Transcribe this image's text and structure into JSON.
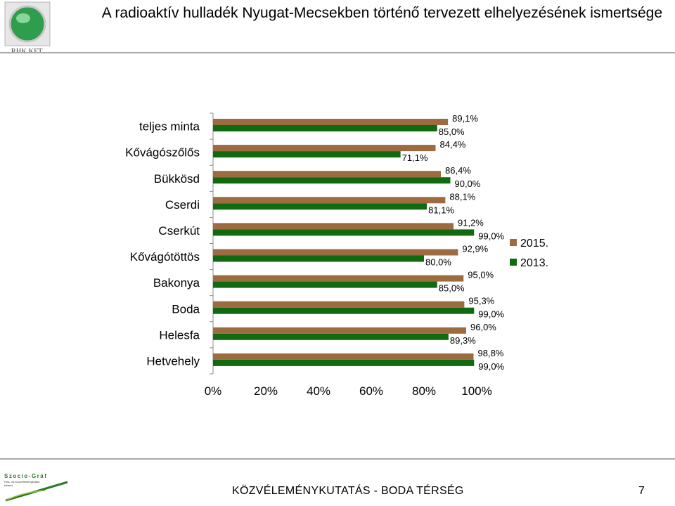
{
  "header": {
    "title": "A radioaktív hulladék Nyugat-Mecsekben történő tervezett elhelyezésének ismertsége",
    "logo_text": "RHK KFT."
  },
  "footer": {
    "logo_text": "Szocio-Gráf",
    "logo_subtext_1": "Piac- és Közvéleménykutató",
    "logo_subtext_2": "Intézet",
    "text": "KÖZVÉLEMÉNYKUTATÁS - BODA TÉRSÉG",
    "page_number": "7"
  },
  "colors": {
    "2015": "#9c6b3f",
    "2013": "#106b10"
  },
  "chart_data": {
    "type": "bar",
    "orientation": "horizontal",
    "categories": [
      "teljes minta",
      "Kővágószőlős",
      "Bükkösd",
      "Cserdi",
      "Cserkút",
      "Kővágótöttös",
      "Bakonya",
      "Boda",
      "Helesfa",
      "Hetvehely"
    ],
    "series": [
      {
        "name": "2015.",
        "values": [
          89.1,
          84.4,
          86.4,
          88.1,
          91.2,
          92.9,
          95.0,
          95.3,
          96.0,
          98.8
        ],
        "labels": [
          "89,1%",
          "84,4%",
          "86,4%",
          "88,1%",
          "91,2%",
          "92,9%",
          "95,0%",
          "95,3%",
          "96,0%",
          "98,8%"
        ]
      },
      {
        "name": "2013.",
        "values": [
          85.0,
          71.1,
          90.0,
          81.1,
          99.0,
          80.0,
          85.0,
          99.0,
          89.3,
          99.0
        ],
        "labels": [
          "85,0%",
          "71,1%",
          "90,0%",
          "81,1%",
          "99,0%",
          "80,0%",
          "85,0%",
          "99,0%",
          "89,3%",
          "99,0%"
        ]
      }
    ],
    "xlim": [
      0,
      100
    ],
    "xticks": [
      "0%",
      "20%",
      "40%",
      "60%",
      "80%",
      "100%"
    ],
    "legend": "right",
    "grid": false
  }
}
